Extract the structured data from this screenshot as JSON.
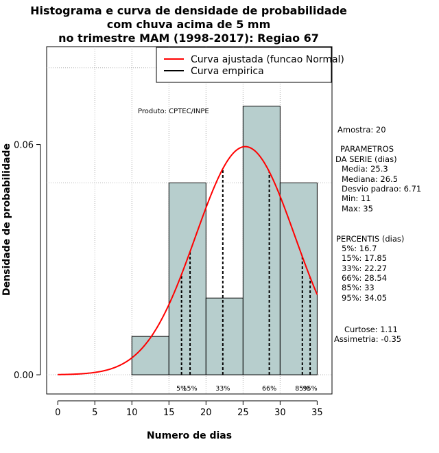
{
  "title": {
    "line1": "Histograma e curva de densidade de probabilidade",
    "line2": "com chuva acima de 5 mm",
    "line3": "no trimestre MAM (1998-2017): Regiao 67"
  },
  "credit": "Produto: CPTEC/INPE",
  "legend": {
    "normal_label": "Curva ajustada (funcao Normal)",
    "empirical_label": "Curva empirica"
  },
  "stats": {
    "sample": "Amostra: 20",
    "params_title1": "PARAMETROS",
    "params_title2": "DA SERIE (dias)",
    "mean": "Media: 25.3",
    "median": "Mediana: 26.5",
    "sd": "Desvio padrao: 6.71",
    "min": "Min: 11",
    "max": "Max: 35",
    "pct_title": "PERCENTIS (dias)",
    "p5": "5%: 16.7",
    "p15": "15%: 17.85",
    "p33": "33%: 22.27",
    "p66": "66%: 28.54",
    "p85": "85%: 33",
    "p95": "95%: 34.05",
    "kurtosis": "Curtose: 1.11",
    "skewness": "Assimetria: -0.35"
  },
  "chart_data": {
    "type": "bar",
    "title": "Histograma e curva de densidade de probabilidade com chuva acima de 5 mm no trimestre MAM (1998-2017): Regiao 67",
    "xlabel": "Numero de dias",
    "ylabel": "Densidade de probabilidade",
    "xlim": [
      -1.5,
      37
    ],
    "ylim": [
      -0.005,
      0.0855
    ],
    "x_ticks": [
      0,
      5,
      10,
      15,
      20,
      25,
      30,
      35
    ],
    "y_ticks": [
      0.0,
      0.06
    ],
    "y_tick_labels": [
      "0.00",
      "0.06"
    ],
    "grid": true,
    "legend_position": "top-right",
    "bins": [
      {
        "from": 10,
        "to": 15,
        "density": 0.01
      },
      {
        "from": 15,
        "to": 20,
        "density": 0.05
      },
      {
        "from": 20,
        "to": 25,
        "density": 0.02
      },
      {
        "from": 25,
        "to": 30,
        "density": 0.07
      },
      {
        "from": 30,
        "to": 35,
        "density": 0.05
      }
    ],
    "normal_fit": {
      "mean": 25.3,
      "sd": 6.71,
      "x_from": 0,
      "x_to": 35,
      "color": "#ff0000"
    },
    "percentiles": [
      {
        "label": "5%",
        "value": 16.7
      },
      {
        "label": "15%",
        "value": 17.85
      },
      {
        "label": "33%",
        "value": 22.27
      },
      {
        "label": "66%",
        "value": 28.54
      },
      {
        "label": "85%",
        "value": 33
      },
      {
        "label": "95%",
        "value": 34.05
      }
    ],
    "bar_color": "#b7cecd",
    "normal_color": "#ff0000",
    "empirical_color": "#000000"
  }
}
